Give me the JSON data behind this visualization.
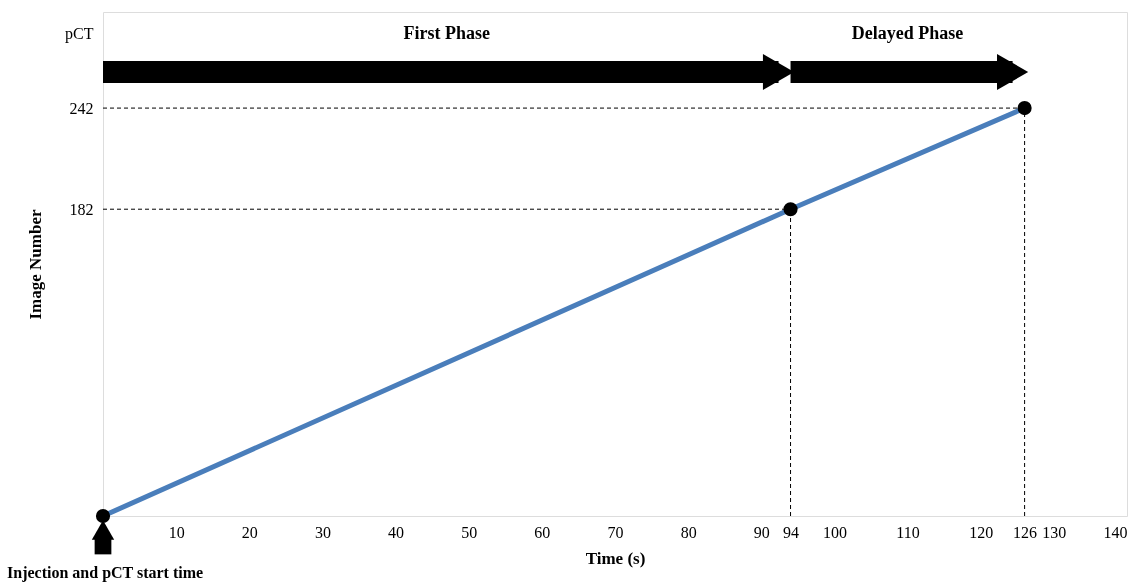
{
  "chart_data": {
    "type": "line",
    "xlabel": "Time (s)",
    "ylabel": "Image Number",
    "x": [
      0,
      94,
      126
    ],
    "series": [
      {
        "color": "#4a7ebb",
        "values": [
          0,
          182,
          242
        ]
      }
    ],
    "marker": "circle",
    "line_style": "solid",
    "xlim": [
      0,
      140
    ],
    "xticks": [
      10,
      20,
      30,
      40,
      50,
      60,
      70,
      80,
      90,
      94,
      100,
      110,
      120,
      126,
      130,
      140
    ],
    "ylim": [
      0,
      299
    ],
    "yticks": [
      182,
      242,
      {
        "value": 286,
        "label": "pCT"
      }
    ],
    "ref_lines": [
      {
        "axis": "y",
        "value": 182,
        "color": "#000000",
        "line_style": "dashed"
      },
      {
        "axis": "y",
        "value": 242,
        "color": "#000000",
        "line_style": "dashed"
      },
      {
        "axis": "x",
        "value": 94,
        "color": "#000000",
        "line_style": "dashed"
      },
      {
        "axis": "x",
        "value": 126,
        "color": "#000000",
        "line_style": "dashed"
      }
    ],
    "annotations": [
      "First Phase",
      "Delayed Phase",
      {
        "text": "Injection and pCT start time",
        "x": 0,
        "y": 0
      }
    ],
    "grid": false
  }
}
